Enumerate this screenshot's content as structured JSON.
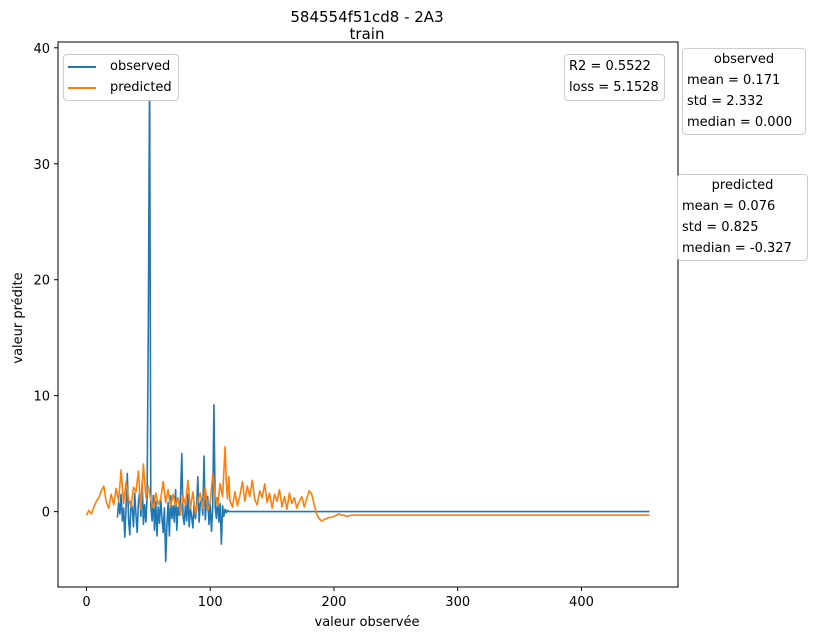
{
  "chart_data": {
    "type": "line",
    "title": "584554f51cd8 - 2A3",
    "subtitle": "train",
    "xlabel": "valeur observée",
    "ylabel": "valeur prédite",
    "xlim": [
      -23,
      478
    ],
    "ylim": [
      -6.5,
      40.5
    ],
    "xticks": [
      0,
      100,
      200,
      300,
      400
    ],
    "yticks": [
      0,
      10,
      20,
      30,
      40
    ],
    "grid": false,
    "legend_position": "top-left",
    "series": [
      {
        "name": "observed",
        "color": "#1f77b4",
        "x": [
          25,
          26,
          27,
          28,
          29,
          30,
          31,
          32,
          33,
          34,
          35,
          36,
          37,
          38,
          39,
          40,
          41,
          42,
          43,
          44,
          45,
          46,
          47,
          48,
          49,
          50,
          51,
          52,
          53,
          54,
          55,
          56,
          57,
          58,
          59,
          60,
          61,
          62,
          63,
          64,
          65,
          66,
          67,
          68,
          69,
          70,
          71,
          72,
          73,
          74,
          75,
          76,
          77,
          78,
          79,
          80,
          81,
          82,
          83,
          84,
          85,
          86,
          87,
          88,
          89,
          90,
          91,
          92,
          93,
          94,
          95,
          96,
          97,
          98,
          99,
          100,
          101,
          102,
          103,
          104,
          105,
          106,
          107,
          108,
          109,
          110,
          111,
          112,
          113,
          114,
          115,
          116,
          117,
          118,
          119,
          120,
          121,
          122,
          123,
          124,
          125,
          126,
          127,
          128,
          129,
          130,
          205,
          455
        ],
        "y": [
          -0.5,
          0.8,
          -0.2,
          1.5,
          -0.8,
          0.3,
          -2.2,
          0.5,
          3.3,
          -0.6,
          -2.0,
          0.9,
          0.2,
          -1.3,
          1.6,
          -0.3,
          -1.8,
          0.7,
          1.8,
          -0.4,
          2.6,
          -1.1,
          0.6,
          -0.9,
          1.3,
          16.0,
          38.0,
          0.5,
          -0.8,
          1.4,
          -1.6,
          0.9,
          -2.1,
          0.4,
          -1.0,
          1.1,
          -0.6,
          -1.8,
          0.3,
          -4.3,
          -1.2,
          0.8,
          -2.1,
          1.4,
          -0.6,
          0.5,
          -0.9,
          1.9,
          -1.6,
          0.4,
          -0.3,
          1.2,
          5.0,
          -0.4,
          -1.1,
          0.6,
          -0.8,
          1.5,
          -1.3,
          0.3,
          -0.5,
          -1.4,
          0.8,
          -0.6,
          0.2,
          3.0,
          -0.9,
          0.7,
          1.1,
          -0.3,
          4.8,
          -0.7,
          0.9,
          1.3,
          -1.1,
          0.6,
          -1.7,
          0.3,
          9.2,
          0.4,
          -0.6,
          1.2,
          -0.9,
          0.7,
          -2.8,
          0.5,
          -0.4,
          0.2,
          -0.1,
          0.1,
          0,
          0,
          0,
          0,
          0,
          0,
          0,
          0,
          0,
          0,
          0,
          0,
          0,
          0,
          0,
          0,
          0,
          0
        ]
      },
      {
        "name": "predicted",
        "color": "#ff7f0e",
        "x": [
          0,
          2,
          4,
          6,
          8,
          10,
          12,
          14,
          16,
          18,
          20,
          22,
          24,
          26,
          28,
          30,
          32,
          34,
          36,
          38,
          40,
          42,
          44,
          46,
          48,
          50,
          52,
          54,
          56,
          58,
          60,
          62,
          64,
          66,
          68,
          70,
          72,
          74,
          76,
          78,
          80,
          82,
          84,
          86,
          88,
          90,
          92,
          94,
          96,
          98,
          100,
          102,
          104,
          106,
          108,
          110,
          112,
          113,
          114,
          115,
          116,
          118,
          120,
          122,
          124,
          126,
          128,
          130,
          132,
          134,
          136,
          138,
          140,
          142,
          144,
          146,
          148,
          150,
          152,
          154,
          156,
          158,
          160,
          162,
          164,
          166,
          168,
          170,
          172,
          174,
          176,
          178,
          180,
          182,
          184,
          186,
          188,
          190,
          192,
          194,
          196,
          198,
          200,
          202,
          204,
          206,
          208,
          210,
          215,
          220,
          225,
          230,
          240,
          260,
          300,
          350,
          400,
          455
        ],
        "y": [
          -0.3,
          0.1,
          -0.2,
          0.4,
          0.9,
          1.2,
          1.8,
          2.2,
          0.8,
          0.3,
          1.5,
          0.6,
          2.0,
          0.9,
          3.6,
          0.7,
          2.6,
          1.1,
          0.4,
          2.1,
          1.7,
          3.5,
          0.2,
          4.1,
          1.2,
          2.2,
          1.0,
          0.3,
          1.6,
          0.6,
          1.1,
          2.6,
          0.8,
          1.9,
          0.4,
          1.5,
          0.5,
          1.2,
          -0.3,
          1.4,
          0.6,
          2.7,
          0.3,
          1.7,
          -0.2,
          0.9,
          1.6,
          0.3,
          2.1,
          0.1,
          0.8,
          3.2,
          1.4,
          0.5,
          2.4,
          1.3,
          5.6,
          2.5,
          1.1,
          3.0,
          0.9,
          0.4,
          1.7,
          0.5,
          1.4,
          2.6,
          0.9,
          2.2,
          1.3,
          2.7,
          1.0,
          0.6,
          1.8,
          1.2,
          2.4,
          0.8,
          1.6,
          0.3,
          1.5,
          0.9,
          1.9,
          0.4,
          1.3,
          0.2,
          1.6,
          0.7,
          1.2,
          0.3,
          0.9,
          1.3,
          0.4,
          1.1,
          1.8,
          1.5,
          0.6,
          -0.2,
          -0.6,
          -0.8,
          -0.7,
          -0.6,
          -0.5,
          -0.5,
          -0.4,
          -0.3,
          -0.2,
          -0.3,
          -0.3,
          -0.4,
          -0.3,
          -0.3,
          -0.3,
          -0.3,
          -0.3,
          -0.3,
          -0.3,
          -0.3,
          -0.3,
          -0.3
        ]
      }
    ]
  },
  "metrics": {
    "r2_text": "R2 = 0.5522",
    "loss_text": "loss = 5.1528"
  },
  "stats": {
    "observed": {
      "title": "observed",
      "mean": "mean = 0.171",
      "std": "std = 2.332",
      "median": "median = 0.000"
    },
    "predicted": {
      "title": "predicted",
      "mean": "mean = 0.076",
      "std": "std = 0.825",
      "median": "median = -0.327"
    }
  }
}
